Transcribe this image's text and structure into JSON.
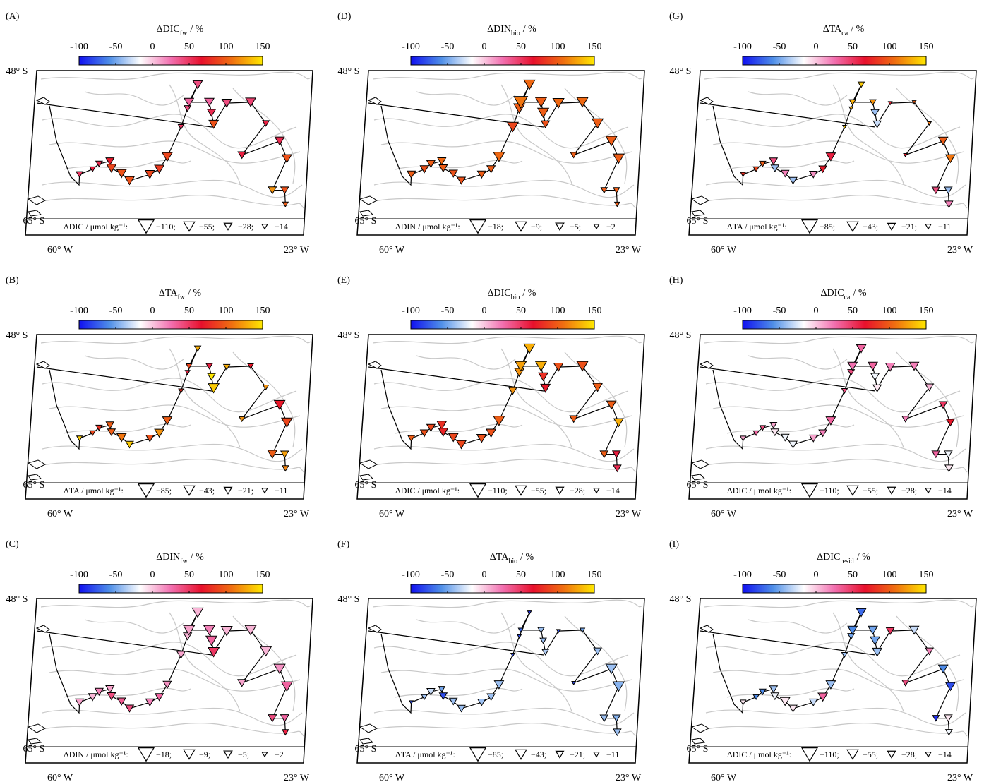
{
  "map": {
    "lonlim": [
      -60,
      -23
    ],
    "latlim": [
      -48,
      -65
    ],
    "lat_ticks": [
      {
        "value": -48,
        "label": "48° S"
      },
      {
        "value": -65,
        "label": "65° S"
      }
    ],
    "lon_ticks": [
      {
        "value": -60,
        "label": "60° W"
      },
      {
        "value": -23,
        "label": "23° W"
      }
    ]
  },
  "colorbar": {
    "clim": [
      -100,
      150
    ],
    "ticks": [
      -100,
      -50,
      0,
      50,
      100,
      150
    ],
    "colormap": [
      "#1010f0",
      "#4f8fe8",
      "#ffffff",
      "#f270b0",
      "#e8102c",
      "#f07010",
      "#ffe800"
    ]
  },
  "stations": {
    "lon": [
      -53.9,
      -52.1,
      -51.2,
      -49.7,
      -49.5,
      -48.1,
      -47.0,
      -44.2,
      -42.9,
      -41.8,
      -39.9,
      -39.0,
      -37.6,
      -38.8,
      -36.0,
      -35.7,
      -35.4,
      -33.6,
      -30.3,
      -28.2,
      -31.5,
      -26.3,
      -25.3,
      -27.3,
      -25.6,
      -25.5
    ],
    "lat": [
      -59.8,
      -59.2,
      -58.6,
      -58.3,
      -59.1,
      -59.7,
      -60.5,
      -59.8,
      -59.2,
      -57.8,
      -54.4,
      -52.3,
      -49.6,
      -51.6,
      -51.6,
      -52.8,
      -54.1,
      -51.7,
      -51.6,
      -54.0,
      -57.6,
      -56.0,
      -58.0,
      -61.6,
      -61.6,
      -63.2
    ]
  },
  "panels": [
    {
      "label": "(A)",
      "title_var": "ΔDIC",
      "title_sub": "fw",
      "title_unit": "/ %",
      "legend_label": "ΔDIC / μmol kg⁻¹:",
      "legend_values": [
        {
          "value": -110,
          "label": "−110;"
        },
        {
          "value": -55,
          "label": "−55;"
        },
        {
          "value": -28,
          "label": "−28;"
        },
        {
          "value": -14,
          "label": "−14"
        }
      ],
      "values": [
        50,
        60,
        55,
        70,
        90,
        95,
        95,
        90,
        85,
        90,
        50,
        40,
        40,
        30,
        30,
        55,
        95,
        40,
        45,
        60,
        60,
        55,
        95,
        120,
        95,
        100
      ],
      "sizes": [
        -20,
        -14,
        -20,
        -30,
        -40,
        -40,
        -40,
        -40,
        -40,
        -45,
        -14,
        -20,
        -40,
        -40,
        -40,
        -30,
        -40,
        -40,
        -45,
        -20,
        -28,
        -40,
        -40,
        -30,
        -28,
        -14
      ]
    },
    {
      "label": "(B)",
      "title_var": "ΔTA",
      "title_sub": "fw",
      "title_unit": "/ %",
      "legend_label": "ΔTA / μmol kg⁻¹:",
      "legend_values": [
        {
          "value": -85,
          "label": "−85;"
        },
        {
          "value": -43,
          "label": "−43;"
        },
        {
          "value": -21,
          "label": "−21;"
        },
        {
          "value": -11,
          "label": "−11"
        }
      ],
      "values": [
        140,
        90,
        80,
        100,
        100,
        110,
        140,
        95,
        120,
        100,
        80,
        60,
        130,
        90,
        60,
        150,
        140,
        130,
        70,
        120,
        120,
        70,
        90,
        100,
        125,
        115
      ],
      "sizes": [
        -11,
        -11,
        -14,
        -21,
        -21,
        -30,
        -21,
        -21,
        -30,
        -30,
        -8,
        -8,
        -14,
        -11,
        -14,
        -21,
        -40,
        -14,
        -11,
        -11,
        -11,
        -40,
        -40,
        -30,
        -21,
        -14
      ]
    },
    {
      "label": "(C)",
      "title_var": "ΔDIN",
      "title_sub": "fw",
      "title_unit": "/ %",
      "legend_label": "ΔDIN / μmol kg⁻¹:",
      "legend_values": [
        {
          "value": -18,
          "label": "−18;"
        },
        {
          "value": -9,
          "label": "−9;"
        },
        {
          "value": -5,
          "label": "−5;"
        },
        {
          "value": -2,
          "label": "−2"
        }
      ],
      "values": [
        10,
        5,
        20,
        10,
        40,
        35,
        40,
        20,
        30,
        15,
        10,
        5,
        5,
        10,
        20,
        30,
        50,
        5,
        5,
        5,
        10,
        15,
        30,
        40,
        30,
        60
      ],
      "sizes": [
        -5,
        -5,
        -5,
        -5,
        -5,
        -5,
        -5,
        -5,
        -5,
        -5,
        -5,
        -5,
        -9,
        -9,
        -9,
        -9,
        -9,
        -9,
        -9,
        -9,
        -5,
        -9,
        -9,
        -5,
        -5,
        -3
      ]
    },
    {
      "label": "(D)",
      "title_var": "ΔDIN",
      "title_sub": "bio",
      "title_unit": "/ %",
      "legend_label": "ΔDIN / μmol kg⁻¹:",
      "legend_values": [
        {
          "value": -18,
          "label": "−18;"
        },
        {
          "value": -9,
          "label": "−9;"
        },
        {
          "value": -5,
          "label": "−5;"
        },
        {
          "value": -2,
          "label": "−2"
        }
      ],
      "values": [
        100,
        95,
        100,
        105,
        100,
        95,
        95,
        100,
        100,
        105,
        90,
        100,
        105,
        110,
        100,
        100,
        95,
        105,
        105,
        100,
        100,
        100,
        100,
        100,
        100,
        100
      ],
      "sizes": [
        -5,
        -5,
        -5,
        -5,
        -5,
        -5,
        -5,
        -5,
        -5,
        -9,
        -9,
        -9,
        -9,
        -14,
        -9,
        -9,
        -5,
        -9,
        -9,
        -9,
        -3,
        -9,
        -9,
        -3,
        -3,
        -2
      ]
    },
    {
      "label": "(E)",
      "title_var": "ΔDIC",
      "title_sub": "bio",
      "title_unit": "/ %",
      "legend_label": "ΔDIC / μmol kg⁻¹:",
      "legend_values": [
        {
          "value": -110,
          "label": "−110;"
        },
        {
          "value": -55,
          "label": "−55;"
        },
        {
          "value": -28,
          "label": "−28;"
        },
        {
          "value": -14,
          "label": "−14"
        }
      ],
      "values": [
        100,
        95,
        90,
        80,
        75,
        90,
        90,
        95,
        95,
        100,
        120,
        120,
        130,
        125,
        130,
        80,
        70,
        95,
        95,
        100,
        100,
        100,
        130,
        100,
        60,
        55
      ],
      "sizes": [
        -20,
        -28,
        -30,
        -40,
        -40,
        -40,
        -40,
        -40,
        -40,
        -55,
        -28,
        -40,
        -55,
        -55,
        -55,
        -40,
        -40,
        -40,
        -55,
        -40,
        -28,
        -40,
        -40,
        -28,
        -28,
        -28
      ]
    },
    {
      "label": "(F)",
      "title_var": "ΔTA",
      "title_sub": "bio",
      "title_unit": "/ %",
      "legend_label": "ΔTA / μmol kg⁻¹:",
      "legend_values": [
        {
          "value": -85,
          "label": "−85;"
        },
        {
          "value": -43,
          "label": "−43;"
        },
        {
          "value": -21,
          "label": "−21;"
        },
        {
          "value": -11,
          "label": "−11"
        }
      ],
      "values": [
        -80,
        -40,
        -30,
        -50,
        -80,
        -40,
        -40,
        -40,
        -40,
        -40,
        -80,
        -80,
        -90,
        -70,
        -40,
        -40,
        -35,
        -80,
        -50,
        -40,
        -80,
        -40,
        -45,
        -40,
        -45,
        -40
      ],
      "sizes": [
        -5,
        -11,
        -21,
        -14,
        -21,
        -21,
        -21,
        -21,
        -21,
        -30,
        -5,
        -5,
        -5,
        -8,
        -14,
        -14,
        -14,
        -5,
        -8,
        -21,
        -5,
        -43,
        -43,
        -21,
        -21,
        -21
      ]
    },
    {
      "label": "(G)",
      "title_var": "ΔTA",
      "title_sub": "ca",
      "title_unit": "/ %",
      "legend_label": "ΔTA / μmol kg⁻¹:",
      "legend_values": [
        {
          "value": -85,
          "label": "−85;"
        },
        {
          "value": -43,
          "label": "−43;"
        },
        {
          "value": -21,
          "label": "−21;"
        },
        {
          "value": -11,
          "label": "−11"
        }
      ],
      "values": [
        80,
        90,
        100,
        40,
        -40,
        20,
        -40,
        15,
        70,
        60,
        140,
        130,
        140,
        130,
        120,
        -40,
        -30,
        70,
        100,
        110,
        70,
        100,
        110,
        40,
        -40,
        20
      ],
      "sizes": [
        -8,
        -11,
        -14,
        -21,
        -21,
        -21,
        -21,
        -21,
        -21,
        -30,
        -5,
        -5,
        -14,
        -14,
        -14,
        -21,
        -21,
        -5,
        -5,
        -5,
        -5,
        -30,
        -30,
        -21,
        -21,
        -21
      ]
    },
    {
      "label": "(H)",
      "title_var": "ΔDIC",
      "title_sub": "ca",
      "title_unit": "/ %",
      "legend_label": "ΔDIC / μmol kg⁻¹:",
      "legend_values": [
        {
          "value": -110,
          "label": "−110;"
        },
        {
          "value": -55,
          "label": "−55;"
        },
        {
          "value": -28,
          "label": "−28;"
        },
        {
          "value": -14,
          "label": "−14"
        }
      ],
      "values": [
        10,
        30,
        40,
        10,
        -10,
        -20,
        -20,
        10,
        20,
        30,
        40,
        40,
        30,
        25,
        30,
        -20,
        -10,
        20,
        20,
        5,
        20,
        50,
        70,
        30,
        -20,
        -10
      ],
      "sizes": [
        -14,
        -14,
        -14,
        -20,
        -28,
        -28,
        -28,
        -28,
        -28,
        -40,
        -14,
        -20,
        -40,
        -40,
        -40,
        -30,
        -30,
        -40,
        -40,
        -30,
        -20,
        -28,
        -28,
        -28,
        -28,
        -28
      ]
    },
    {
      "label": "(I)",
      "title_var": "ΔDIC",
      "title_sub": "resid",
      "title_unit": "/ %",
      "legend_label": "ΔDIC / μmol kg⁻¹:",
      "legend_values": [
        {
          "value": -110,
          "label": "−110;"
        },
        {
          "value": -55,
          "label": "−55;"
        },
        {
          "value": -28,
          "label": "−28;"
        },
        {
          "value": -14,
          "label": "−14"
        }
      ],
      "values": [
        -10,
        -60,
        -60,
        -40,
        -20,
        -10,
        -10,
        -30,
        30,
        -40,
        -40,
        -50,
        -70,
        -60,
        -50,
        -50,
        -40,
        50,
        -30,
        20,
        40,
        -60,
        -80,
        -90,
        -10,
        -20
      ],
      "sizes": [
        -14,
        -14,
        -20,
        -28,
        -28,
        -40,
        -28,
        -28,
        -40,
        -40,
        -14,
        -20,
        -40,
        -40,
        -40,
        -40,
        -40,
        -28,
        -40,
        -28,
        -20,
        -40,
        -40,
        -20,
        -28,
        -20
      ]
    }
  ]
}
